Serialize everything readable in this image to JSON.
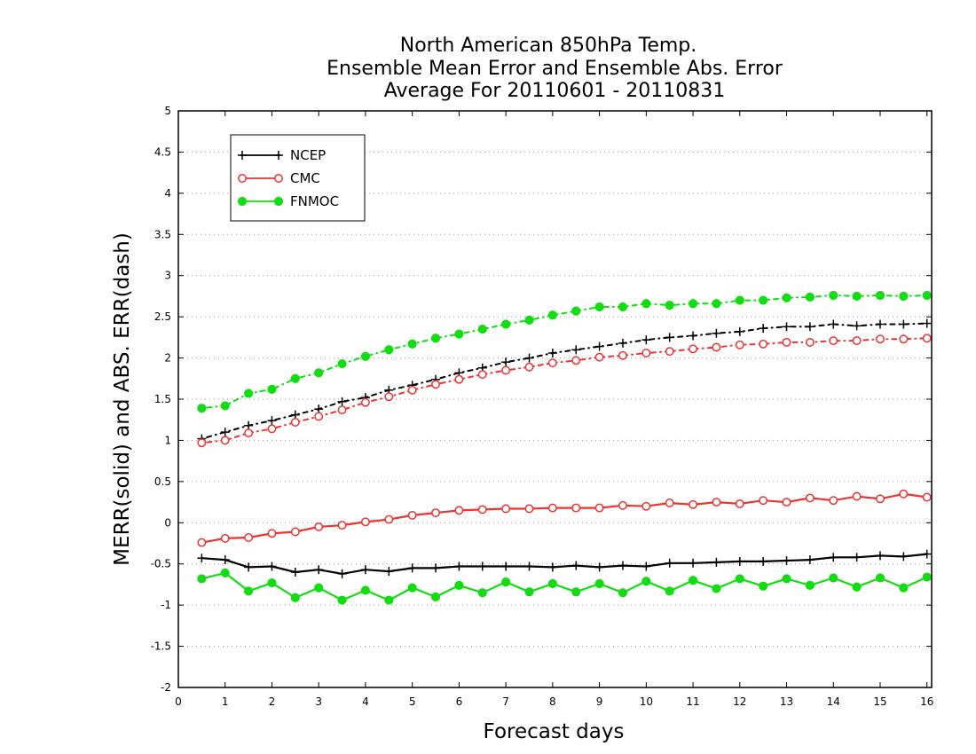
{
  "chart_data": {
    "type": "line",
    "title_lines": [
      "North American 850hPa Temp.",
      "Ensemble Mean Error and Ensemble Abs. Error",
      "Average For 20110601 - 20110831"
    ],
    "xlabel": "Forecast days",
    "ylabel": "MERR(solid) and ABS. ERR(dash)",
    "xlim": [
      0,
      16.1
    ],
    "ylim": [
      -2,
      5
    ],
    "x_ticks": [
      0,
      1,
      2,
      3,
      4,
      5,
      6,
      7,
      8,
      9,
      10,
      11,
      12,
      13,
      14,
      15,
      16
    ],
    "y_ticks": [
      -2,
      -1.5,
      -1,
      -0.5,
      0,
      0.5,
      1,
      1.5,
      2,
      2.5,
      3,
      3.5,
      4,
      4.5,
      5
    ],
    "grid": "horizontal dotted",
    "legend_position": "top-left",
    "x": [
      0.5,
      1,
      1.5,
      2,
      2.5,
      3,
      3.5,
      4,
      4.5,
      5,
      5.5,
      6,
      6.5,
      7,
      7.5,
      8,
      8.5,
      9,
      9.5,
      10,
      10.5,
      11,
      11.5,
      12,
      12.5,
      13,
      13.5,
      14,
      14.5,
      15,
      15.5,
      16
    ],
    "series": [
      {
        "name": "NCEP",
        "color": "#000000",
        "marker": "plus",
        "mean_error": [
          -0.43,
          -0.45,
          -0.54,
          -0.53,
          -0.6,
          -0.57,
          -0.62,
          -0.57,
          -0.59,
          -0.55,
          -0.55,
          -0.53,
          -0.53,
          -0.53,
          -0.53,
          -0.54,
          -0.52,
          -0.54,
          -0.52,
          -0.53,
          -0.49,
          -0.49,
          -0.48,
          -0.47,
          -0.47,
          -0.46,
          -0.45,
          -0.42,
          -0.42,
          -0.4,
          -0.41,
          -0.38
        ],
        "abs_error": [
          1.02,
          1.1,
          1.18,
          1.24,
          1.31,
          1.38,
          1.47,
          1.52,
          1.61,
          1.67,
          1.74,
          1.82,
          1.88,
          1.95,
          2.0,
          2.06,
          2.1,
          2.14,
          2.18,
          2.22,
          2.25,
          2.27,
          2.3,
          2.32,
          2.36,
          2.38,
          2.38,
          2.41,
          2.39,
          2.41,
          2.41,
          2.42
        ]
      },
      {
        "name": "CMC",
        "color": "#ee3333",
        "marker": "open-circle",
        "mean_error": [
          -0.24,
          -0.19,
          -0.18,
          -0.13,
          -0.11,
          -0.05,
          -0.03,
          0.01,
          0.04,
          0.09,
          0.12,
          0.15,
          0.16,
          0.17,
          0.17,
          0.18,
          0.18,
          0.18,
          0.21,
          0.2,
          0.24,
          0.22,
          0.25,
          0.23,
          0.27,
          0.25,
          0.3,
          0.27,
          0.32,
          0.29,
          0.35,
          0.31
        ],
        "abs_error": [
          0.97,
          1.0,
          1.09,
          1.14,
          1.22,
          1.29,
          1.37,
          1.46,
          1.53,
          1.61,
          1.68,
          1.74,
          1.8,
          1.85,
          1.89,
          1.94,
          1.97,
          2.01,
          2.03,
          2.06,
          2.08,
          2.11,
          2.13,
          2.16,
          2.17,
          2.19,
          2.19,
          2.21,
          2.21,
          2.23,
          2.23,
          2.24
        ]
      },
      {
        "name": "FNMOC",
        "color": "#11dd11",
        "marker": "filled-circle",
        "mean_error": [
          -0.68,
          -0.61,
          -0.83,
          -0.73,
          -0.91,
          -0.79,
          -0.94,
          -0.82,
          -0.94,
          -0.79,
          -0.9,
          -0.76,
          -0.85,
          -0.72,
          -0.84,
          -0.74,
          -0.84,
          -0.74,
          -0.85,
          -0.71,
          -0.83,
          -0.7,
          -0.8,
          -0.68,
          -0.77,
          -0.68,
          -0.76,
          -0.67,
          -0.78,
          -0.67,
          -0.79,
          -0.66
        ],
        "abs_error": [
          1.39,
          1.42,
          1.57,
          1.62,
          1.75,
          1.82,
          1.93,
          2.02,
          2.1,
          2.17,
          2.24,
          2.29,
          2.35,
          2.41,
          2.46,
          2.52,
          2.57,
          2.62,
          2.62,
          2.66,
          2.64,
          2.66,
          2.66,
          2.7,
          2.7,
          2.73,
          2.74,
          2.76,
          2.75,
          2.76,
          2.75,
          2.76
        ]
      }
    ]
  }
}
